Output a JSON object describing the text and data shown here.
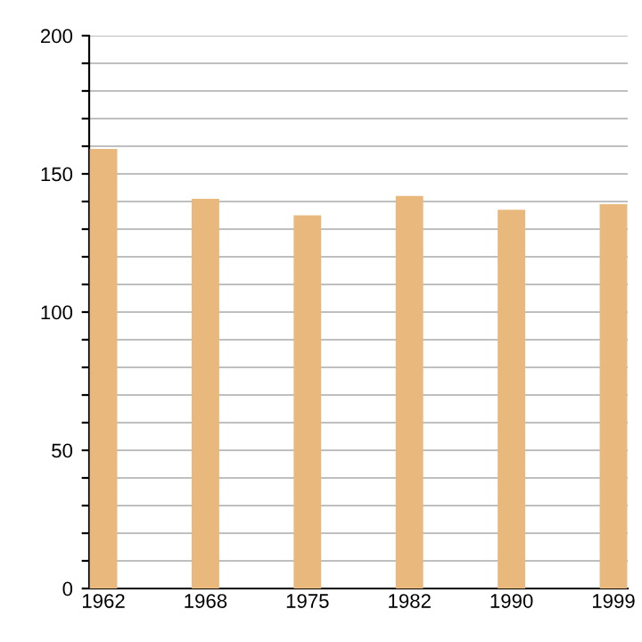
{
  "chart_data": {
    "type": "bar",
    "categories": [
      "1962",
      "1968",
      "1975",
      "1982",
      "1990",
      "1999"
    ],
    "values": [
      159,
      141,
      135,
      142,
      137,
      139
    ],
    "color": "#e8b87c",
    "ylim": [
      0,
      200
    ],
    "yticks": [
      0,
      {
        "value": 10,
        "label": null
      },
      {
        "value": 20,
        "label": null
      },
      {
        "value": 30,
        "label": null
      },
      {
        "value": 40,
        "label": null
      },
      50,
      {
        "value": 60,
        "label": null
      },
      {
        "value": 70,
        "label": null
      },
      {
        "value": 80,
        "label": null
      },
      {
        "value": 90,
        "label": null
      },
      100,
      {
        "value": 110,
        "label": null
      },
      {
        "value": 120,
        "label": null
      },
      {
        "value": 130,
        "label": null
      },
      {
        "value": 140,
        "label": null
      },
      150,
      {
        "value": 160,
        "label": null
      },
      {
        "value": 170,
        "label": null
      },
      {
        "value": 180,
        "label": null
      },
      {
        "value": 190,
        "label": null
      },
      200
    ],
    "grid": "y"
  }
}
